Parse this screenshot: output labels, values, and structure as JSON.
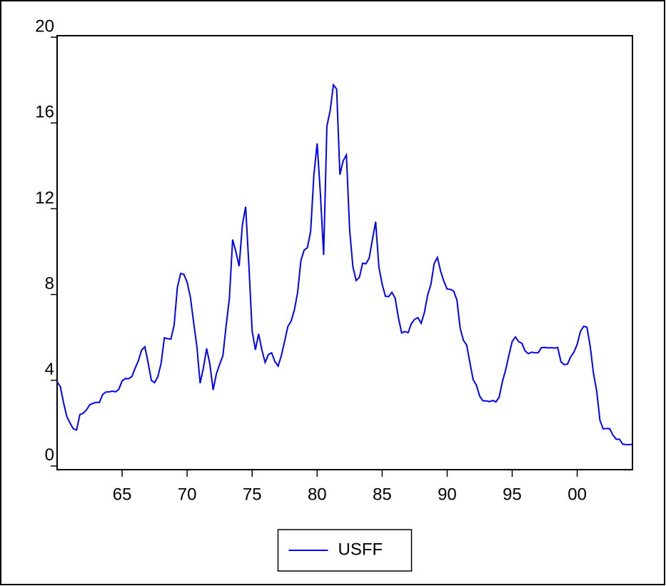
{
  "chart_data": {
    "type": "line",
    "x": [
      1960,
      1960.25,
      1960.5,
      1960.75,
      1961,
      1961.25,
      1961.5,
      1961.75,
      1962,
      1962.25,
      1962.5,
      1962.75,
      1963,
      1963.25,
      1963.5,
      1963.75,
      1964,
      1964.25,
      1964.5,
      1964.75,
      1965,
      1965.25,
      1965.5,
      1965.75,
      1966,
      1966.25,
      1966.5,
      1966.75,
      1967,
      1967.25,
      1967.5,
      1967.75,
      1968,
      1968.25,
      1968.5,
      1968.75,
      1969,
      1969.25,
      1969.5,
      1969.75,
      1970,
      1970.25,
      1970.5,
      1970.75,
      1971,
      1971.25,
      1971.5,
      1971.75,
      1972,
      1972.25,
      1972.5,
      1972.75,
      1973,
      1973.25,
      1973.5,
      1973.75,
      1974,
      1974.25,
      1974.5,
      1974.75,
      1975,
      1975.25,
      1975.5,
      1975.75,
      1976,
      1976.25,
      1976.5,
      1976.75,
      1977,
      1977.25,
      1977.5,
      1977.75,
      1978,
      1978.25,
      1978.5,
      1978.75,
      1979,
      1979.25,
      1979.5,
      1979.75,
      1980,
      1980.25,
      1980.5,
      1980.75,
      1981,
      1981.25,
      1981.5,
      1981.75,
      1982,
      1982.25,
      1982.5,
      1982.75,
      1983,
      1983.25,
      1983.5,
      1983.75,
      1984,
      1984.25,
      1984.5,
      1984.75,
      1985,
      1985.25,
      1985.5,
      1985.75,
      1986,
      1986.25,
      1986.5,
      1986.75,
      1987,
      1987.25,
      1987.5,
      1987.75,
      1988,
      1988.25,
      1988.5,
      1988.75,
      1989,
      1989.25,
      1989.5,
      1989.75,
      1990,
      1990.25,
      1990.5,
      1990.75,
      1991,
      1991.25,
      1991.5,
      1991.75,
      1992,
      1992.25,
      1992.5,
      1992.75,
      1993,
      1993.25,
      1993.5,
      1993.75,
      1994,
      1994.25,
      1994.5,
      1994.75,
      1995,
      1995.25,
      1995.5,
      1995.75,
      1996,
      1996.25,
      1996.5,
      1996.75,
      1997,
      1997.25,
      1997.5,
      1997.75,
      1998,
      1998.25,
      1998.5,
      1998.75,
      1999,
      1999.25,
      1999.5,
      1999.75,
      2000,
      2000.25,
      2000.5,
      2000.75,
      2001,
      2001.25,
      2001.5,
      2001.75,
      2002,
      2002.25,
      2002.5,
      2002.75,
      2003,
      2003.25,
      2003.5,
      2003.75,
      2004,
      2004.25
    ],
    "series": [
      {
        "name": "USFF",
        "color": "#0000ff",
        "values": [
          3.93,
          3.7,
          2.94,
          2.3,
          2.0,
          1.73,
          1.68,
          2.4,
          2.46,
          2.61,
          2.85,
          2.92,
          2.97,
          2.96,
          3.33,
          3.45,
          3.46,
          3.49,
          3.46,
          3.58,
          3.97,
          4.08,
          4.07,
          4.17,
          4.56,
          4.91,
          5.41,
          5.56,
          4.82,
          3.99,
          3.89,
          4.17,
          4.79,
          5.98,
          5.94,
          5.92,
          6.57,
          8.33,
          8.98,
          8.94,
          8.57,
          7.88,
          6.7,
          5.57,
          3.86,
          4.57,
          5.48,
          4.75,
          3.55,
          4.3,
          4.74,
          5.14,
          6.54,
          7.82,
          10.56,
          10.0,
          9.32,
          11.25,
          12.09,
          9.35,
          6.3,
          5.42,
          6.16,
          5.41,
          4.83,
          5.2,
          5.28,
          4.87,
          4.66,
          5.16,
          5.82,
          6.51,
          6.76,
          7.28,
          8.1,
          9.58,
          10.07,
          10.18,
          10.95,
          13.58,
          15.05,
          12.69,
          9.84,
          15.85,
          16.57,
          17.78,
          17.58,
          13.59,
          14.23,
          14.51,
          11.01,
          9.29,
          8.65,
          8.8,
          9.46,
          9.43,
          9.69,
          10.56,
          11.39,
          9.27,
          8.48,
          7.92,
          7.9,
          8.1,
          7.83,
          6.92,
          6.21,
          6.27,
          6.22,
          6.65,
          6.84,
          6.92,
          6.66,
          7.16,
          7.98,
          8.47,
          9.44,
          9.73,
          9.08,
          8.61,
          8.25,
          8.24,
          8.16,
          7.74,
          6.43,
          5.86,
          5.64,
          4.82,
          4.02,
          3.77,
          3.26,
          3.04,
          3.04,
          3.0,
          3.06,
          2.99,
          3.21,
          3.94,
          4.49,
          5.17,
          5.81,
          6.02,
          5.8,
          5.72,
          5.36,
          5.24,
          5.31,
          5.28,
          5.28,
          5.52,
          5.53,
          5.51,
          5.52,
          5.5,
          5.53,
          4.86,
          4.73,
          4.75,
          5.09,
          5.31,
          5.68,
          6.27,
          6.52,
          6.47,
          5.59,
          4.33,
          3.5,
          2.13,
          1.73,
          1.75,
          1.74,
          1.44,
          1.25,
          1.25,
          1.02,
          1.0,
          1.0,
          1.01
        ]
      }
    ],
    "xlim": [
      1960,
      2004.25
    ],
    "xticks": [
      {
        "value": 1965,
        "label": "65"
      },
      {
        "value": 1970,
        "label": "70"
      },
      {
        "value": 1975,
        "label": "75"
      },
      {
        "value": 1980,
        "label": "80"
      },
      {
        "value": 1985,
        "label": "85"
      },
      {
        "value": 1990,
        "label": "90"
      },
      {
        "value": 1995,
        "label": "95"
      },
      {
        "value": 2000,
        "label": "00"
      }
    ],
    "ylim": [
      -0.17,
      20.07
    ],
    "yticks": [
      0,
      4,
      8,
      12,
      16,
      20
    ],
    "legend": "bottom"
  }
}
